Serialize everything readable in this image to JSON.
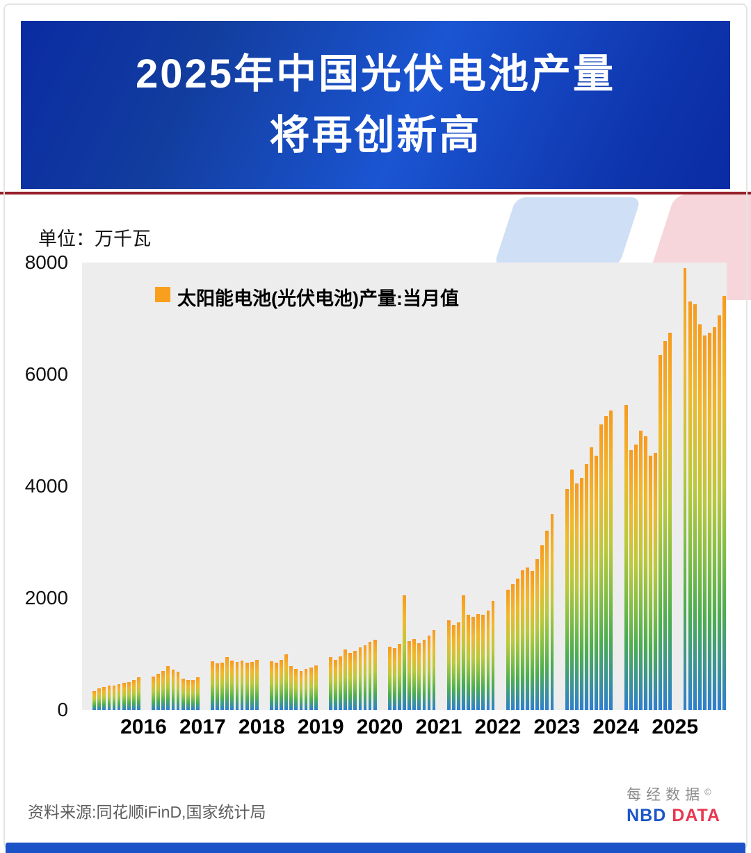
{
  "header": {
    "title_line1": "2025年中国光伏电池产量",
    "title_line2": "将再创新高"
  },
  "footer": {
    "source": "资料来源:同花顺iFinD,国家统计局",
    "logo_cn": "每经数据",
    "logo_mark": "©",
    "logo_nbd": "NBD",
    "logo_data": "DATA"
  },
  "chart_data": {
    "type": "bar",
    "title": "2025年中国光伏电池产量将再创新高",
    "unit_label": "单位：万千瓦",
    "legend": "太阳能电池(光伏电池)产量:当月值",
    "ylim": [
      0,
      8000
    ],
    "yticks": [
      8000,
      6000,
      4000,
      2000,
      0
    ],
    "grid": false,
    "legend_position": "top-left-inside",
    "x_start": "2015-01",
    "x_end": "2025-11",
    "year_labels": [
      2016,
      2017,
      2018,
      2019,
      2020,
      2021,
      2022,
      2023,
      2024,
      2025
    ],
    "colors": {
      "bar_gradient": [
        "#f79a1f",
        "#f0b92c",
        "#bbc93a",
        "#7fbe45",
        "#4cae50",
        "#2d7fd0"
      ],
      "plot_background": "#ededed",
      "banner_blue": "#1b55d2",
      "divider_red": "#96202a"
    },
    "series": [
      {
        "name": "太阳能电池(光伏电池)产量:当月值",
        "points": [
          [
            "2015-03",
            330
          ],
          [
            "2015-04",
            390
          ],
          [
            "2015-05",
            410
          ],
          [
            "2015-06",
            430
          ],
          [
            "2015-07",
            440
          ],
          [
            "2015-08",
            460
          ],
          [
            "2015-09",
            480
          ],
          [
            "2015-10",
            500
          ],
          [
            "2015-11",
            540
          ],
          [
            "2015-12",
            580
          ],
          [
            "2016-03",
            600
          ],
          [
            "2016-04",
            650
          ],
          [
            "2016-05",
            700
          ],
          [
            "2016-06",
            780
          ],
          [
            "2016-07",
            720
          ],
          [
            "2016-08",
            680
          ],
          [
            "2016-09",
            560
          ],
          [
            "2016-10",
            530
          ],
          [
            "2016-11",
            540
          ],
          [
            "2016-12",
            580
          ],
          [
            "2017-03",
            870
          ],
          [
            "2017-04",
            830
          ],
          [
            "2017-05",
            850
          ],
          [
            "2017-06",
            950
          ],
          [
            "2017-07",
            880
          ],
          [
            "2017-08",
            860
          ],
          [
            "2017-09",
            880
          ],
          [
            "2017-10",
            850
          ],
          [
            "2017-11",
            860
          ],
          [
            "2017-12",
            890
          ],
          [
            "2018-03",
            870
          ],
          [
            "2018-04",
            840
          ],
          [
            "2018-05",
            900
          ],
          [
            "2018-06",
            1000
          ],
          [
            "2018-07",
            780
          ],
          [
            "2018-08",
            730
          ],
          [
            "2018-09",
            700
          ],
          [
            "2018-10",
            730
          ],
          [
            "2018-11",
            760
          ],
          [
            "2018-12",
            800
          ],
          [
            "2019-03",
            950
          ],
          [
            "2019-04",
            900
          ],
          [
            "2019-05",
            960
          ],
          [
            "2019-06",
            1080
          ],
          [
            "2019-07",
            1020
          ],
          [
            "2019-08",
            1060
          ],
          [
            "2019-09",
            1120
          ],
          [
            "2019-10",
            1160
          ],
          [
            "2019-11",
            1220
          ],
          [
            "2019-12",
            1260
          ],
          [
            "2020-03",
            1130
          ],
          [
            "2020-04",
            1100
          ],
          [
            "2020-05",
            1180
          ],
          [
            "2020-06",
            2050
          ],
          [
            "2020-07",
            1230
          ],
          [
            "2020-08",
            1270
          ],
          [
            "2020-09",
            1190
          ],
          [
            "2020-10",
            1250
          ],
          [
            "2020-11",
            1330
          ],
          [
            "2020-12",
            1430
          ],
          [
            "2021-03",
            1600
          ],
          [
            "2021-04",
            1520
          ],
          [
            "2021-05",
            1560
          ],
          [
            "2021-06",
            2050
          ],
          [
            "2021-07",
            1700
          ],
          [
            "2021-08",
            1660
          ],
          [
            "2021-09",
            1720
          ],
          [
            "2021-10",
            1700
          ],
          [
            "2021-11",
            1780
          ],
          [
            "2021-12",
            1950
          ],
          [
            "2022-03",
            2150
          ],
          [
            "2022-04",
            2250
          ],
          [
            "2022-05",
            2350
          ],
          [
            "2022-06",
            2500
          ],
          [
            "2022-07",
            2550
          ],
          [
            "2022-08",
            2480
          ],
          [
            "2022-09",
            2700
          ],
          [
            "2022-10",
            2950
          ],
          [
            "2022-11",
            3200
          ],
          [
            "2022-12",
            3500
          ],
          [
            "2023-03",
            3950
          ],
          [
            "2023-04",
            4300
          ],
          [
            "2023-05",
            4050
          ],
          [
            "2023-06",
            4150
          ],
          [
            "2023-07",
            4400
          ],
          [
            "2023-08",
            4700
          ],
          [
            "2023-09",
            4550
          ],
          [
            "2023-10",
            5100
          ],
          [
            "2023-11",
            5250
          ],
          [
            "2023-12",
            5350
          ],
          [
            "2024-03",
            5450
          ],
          [
            "2024-04",
            4650
          ],
          [
            "2024-05",
            4750
          ],
          [
            "2024-06",
            5000
          ],
          [
            "2024-07",
            4900
          ],
          [
            "2024-08",
            4550
          ],
          [
            "2024-09",
            4600
          ],
          [
            "2024-10",
            6350
          ],
          [
            "2024-11",
            6600
          ],
          [
            "2024-12",
            6750
          ],
          [
            "2025-03",
            7900
          ],
          [
            "2025-04",
            7300
          ],
          [
            "2025-05",
            7250
          ],
          [
            "2025-06",
            6900
          ],
          [
            "2025-07",
            6700
          ],
          [
            "2025-08",
            6750
          ],
          [
            "2025-09",
            6850
          ],
          [
            "2025-10",
            7050
          ],
          [
            "2025-11",
            7400
          ]
        ]
      }
    ]
  }
}
